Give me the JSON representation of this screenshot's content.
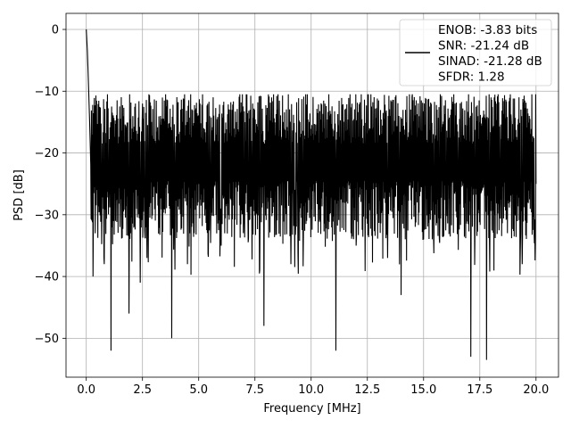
{
  "chart_data": {
    "type": "line",
    "xlabel": "Frequency [MHz]",
    "ylabel": "PSD [dB]",
    "xlim": [
      -0.9,
      21.0
    ],
    "ylim": [
      -56.3,
      2.6
    ],
    "xticks": [
      0.0,
      2.5,
      5.0,
      7.5,
      10.0,
      12.5,
      15.0,
      17.5,
      20.0
    ],
    "xtick_labels": [
      "0.0",
      "2.5",
      "5.0",
      "7.5",
      "10.0",
      "12.5",
      "15.0",
      "17.5",
      "20.0"
    ],
    "yticks": [
      0,
      -10,
      -20,
      -30,
      -40,
      -50
    ],
    "ytick_labels": [
      "0",
      "−10",
      "−20",
      "−30",
      "−40",
      "−50"
    ],
    "grid": true,
    "legend_position": "top-right",
    "legend_lines": [
      "ENOB: -3.83 bits",
      "SNR: -21.24 dB",
      "SINAD: -21.28 dB",
      "SFDR: 1.28"
    ],
    "series_color": "#000000",
    "series": [
      {
        "x": [
          0.0,
          0.05,
          0.1,
          0.15,
          0.2,
          0.3,
          0.4,
          0.5,
          0.6,
          0.8,
          1.0,
          1.1,
          1.2,
          1.5,
          1.9,
          2.2,
          2.4,
          2.5,
          2.7,
          3.0,
          3.3,
          3.8,
          4.2,
          4.5,
          5.0,
          5.5,
          6.0,
          6.4,
          7.0,
          7.4,
          7.9,
          8.5,
          9.1,
          9.5,
          9.8,
          10.3,
          11.1,
          11.5,
          12.0,
          12.6,
          13.0,
          13.4,
          13.9,
          14.0,
          14.5,
          15.0,
          15.6,
          16.0,
          16.4,
          17.1,
          17.5,
          17.8,
          18.0,
          18.4,
          18.9,
          19.3,
          19.7,
          20.0
        ],
        "y": [
          0.0,
          -3.5,
          -9.0,
          -15.0,
          -22.0,
          -40.0,
          -33.0,
          -25.0,
          -16.0,
          -38.0,
          -25.0,
          -52.0,
          -14.0,
          -32.0,
          -46.0,
          -20.0,
          -41.0,
          -12.0,
          -37.0,
          -19.0,
          -14.0,
          -50.0,
          -13.0,
          -38.0,
          -14.0,
          -19.0,
          -35.0,
          -13.0,
          -31.0,
          -12.0,
          -48.0,
          -13.0,
          -38.0,
          -15.0,
          -31.0,
          -14.0,
          -52.0,
          -13.0,
          -35.0,
          -16.0,
          -11.5,
          -37.0,
          -14.0,
          -43.0,
          -10.5,
          -34.0,
          -13.0,
          -28.0,
          -12.0,
          -53.0,
          -15.0,
          -53.5,
          -11.0,
          -27.0,
          -15.0,
          -36.0,
          -14.0,
          -25.0
        ]
      }
    ]
  }
}
